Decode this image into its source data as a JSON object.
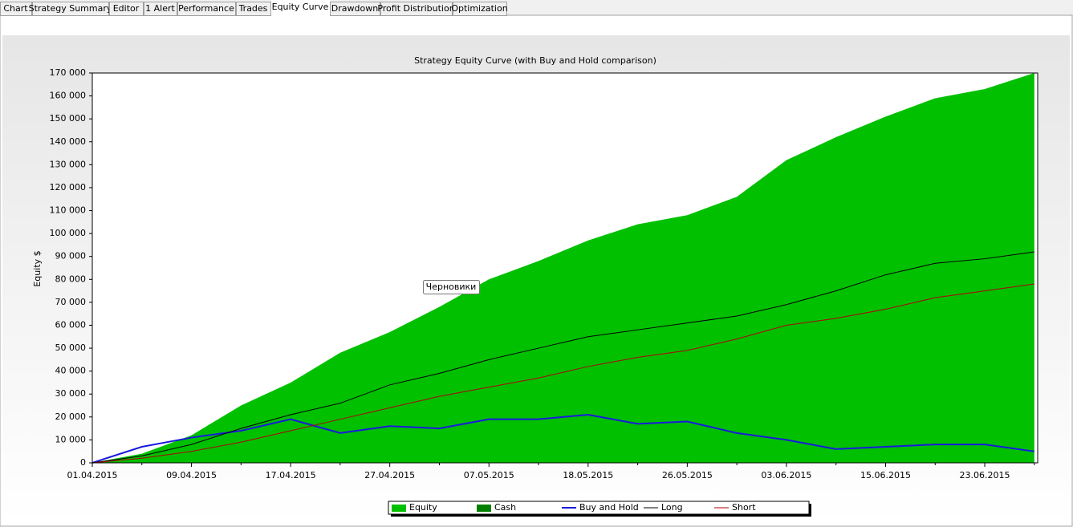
{
  "tabs": [
    "Chart",
    "Strategy Summary",
    "Editor",
    "1 Alert",
    "Performance",
    "Trades",
    "Equity Curve",
    "Drawdown",
    "Profit Distribution",
    "Optimization"
  ],
  "active_tab": 6,
  "tooltip": "Черновики",
  "chart_data": {
    "type": "area",
    "title": "Strategy Equity Curve (with Buy and Hold comparison)",
    "y_label": "Equity $",
    "categories": [
      "01.04.2015",
      null,
      "09.04.2015",
      null,
      "17.04.2015",
      null,
      "27.04.2015",
      null,
      "07.05.2015",
      null,
      "18.05.2015",
      null,
      "26.05.2015",
      null,
      "03.06.2015",
      null,
      "15.06.2015",
      null,
      "23.06.2015",
      null
    ],
    "series": [
      {
        "name": "Equity",
        "kind": "area",
        "color": "#00c000",
        "values": [
          0,
          4000,
          12000,
          25000,
          35000,
          48000,
          57000,
          68000,
          80000,
          88000,
          97000,
          104000,
          108000,
          116000,
          132000,
          142000,
          151000,
          159000,
          163000,
          170000
        ]
      },
      {
        "name": "Cash",
        "kind": "area",
        "color": "#008000",
        "values": [
          null,
          null,
          null,
          null,
          null,
          null,
          null,
          null,
          null,
          null,
          null,
          null,
          null,
          null,
          null,
          null,
          null,
          null,
          null,
          null
        ]
      },
      {
        "name": "Buy and Hold",
        "kind": "line",
        "color": "#1a1adc",
        "values": [
          0,
          7000,
          11000,
          14000,
          19000,
          13000,
          16000,
          15000,
          19000,
          19000,
          21000,
          17000,
          18000,
          13000,
          10000,
          6000,
          7000,
          8000,
          8000,
          5000
        ]
      },
      {
        "name": "Long",
        "kind": "line",
        "color": "#000000",
        "values": [
          0,
          3000,
          8000,
          15000,
          21000,
          26000,
          34000,
          39000,
          45000,
          50000,
          55000,
          58000,
          61000,
          64000,
          69000,
          75000,
          82000,
          87000,
          89000,
          92000
        ]
      },
      {
        "name": "Short",
        "kind": "line",
        "color": "#b00000",
        "values": [
          0,
          2000,
          5000,
          9000,
          14000,
          19000,
          24000,
          29000,
          33000,
          37000,
          42000,
          46000,
          49000,
          54000,
          60000,
          63000,
          67000,
          72000,
          75000,
          78000
        ]
      }
    ],
    "ylim": [
      0,
      170000
    ],
    "yticks": [
      0,
      {
        "value": 10000,
        "label": "10 000"
      },
      {
        "value": 20000,
        "label": "20 000"
      },
      {
        "value": 30000,
        "label": "30 000"
      },
      {
        "value": 40000,
        "label": "40 000"
      },
      {
        "value": 50000,
        "label": "50 000"
      },
      {
        "value": 60000,
        "label": "60 000"
      },
      {
        "value": 70000,
        "label": "70 000"
      },
      {
        "value": 80000,
        "label": "80 000"
      },
      {
        "value": 90000,
        "label": "90 000"
      },
      {
        "value": 100000,
        "label": "100 000"
      },
      {
        "value": 110000,
        "label": "110 000"
      },
      {
        "value": 120000,
        "label": "120 000"
      },
      {
        "value": 130000,
        "label": "130 000"
      },
      {
        "value": 140000,
        "label": "140 000"
      },
      {
        "value": 150000,
        "label": "150 000"
      },
      {
        "value": 160000,
        "label": "160 000"
      },
      {
        "value": 170000,
        "label": "170 000"
      }
    ],
    "grid": false,
    "legend": "bottom"
  }
}
